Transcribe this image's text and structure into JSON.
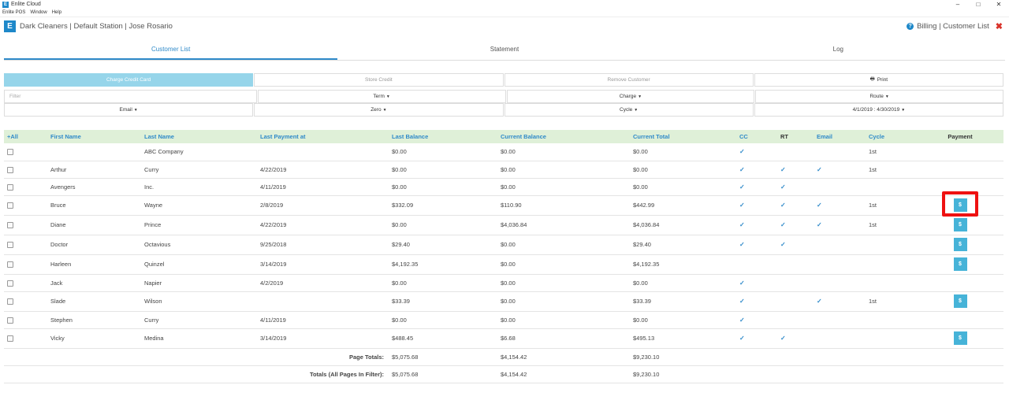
{
  "window": {
    "title": "Enlite Cloud",
    "logo_letter": "E",
    "controls": [
      "–",
      "□",
      "✕"
    ]
  },
  "menu": [
    "Enlite POS",
    "Window",
    "Help"
  ],
  "app": {
    "logo_letter": "E",
    "title": "Dark Cleaners | Default Station | Jose Rosario",
    "right_label": "Billing | Customer List"
  },
  "tabs": [
    "Customer List",
    "Statement",
    "Log"
  ],
  "actions": {
    "charge": "Charge Credit Card",
    "store": "Store Credit",
    "remove": "Remove Customer",
    "print": "Print"
  },
  "filters": {
    "placeholder": "Filter",
    "term": "Term",
    "charge": "Charge",
    "route": "Route",
    "email": "Email",
    "zero": "Zero",
    "cycle": "Cycle",
    "dates": "4/1/2019 : 4/30/2019"
  },
  "table": {
    "headers": {
      "all": "+All",
      "first": "First Name",
      "last": "Last Name",
      "lastpay": "Last Payment at",
      "lastbal": "Last Balance",
      "curbal": "Current Balance",
      "curtot": "Current Total",
      "cc": "CC",
      "rt": "RT",
      "email": "Email",
      "cycle": "Cycle",
      "payment": "Payment"
    },
    "rows": [
      {
        "first": "",
        "last": "ABC Company",
        "lastpay": "",
        "lastbal": "$0.00",
        "curbal": "$0.00",
        "curtot": "$0.00",
        "cc": true,
        "rt": false,
        "email": false,
        "cycle": "1st",
        "pay": false
      },
      {
        "first": "Arthur",
        "last": "Curry",
        "lastpay": "4/22/2019",
        "lastbal": "$0.00",
        "curbal": "$0.00",
        "curtot": "$0.00",
        "cc": true,
        "rt": true,
        "email": true,
        "cycle": "1st",
        "pay": false
      },
      {
        "first": "Avengers",
        "last": "Inc.",
        "lastpay": "4/11/2019",
        "lastbal": "$0.00",
        "curbal": "$0.00",
        "curtot": "$0.00",
        "cc": true,
        "rt": true,
        "email": false,
        "cycle": "",
        "pay": false
      },
      {
        "first": "Bruce",
        "last": "Wayne",
        "lastpay": "2/8/2019",
        "lastbal": "$332.09",
        "curbal": "$110.90",
        "curtot": "$442.99",
        "cc": true,
        "rt": true,
        "email": true,
        "cycle": "1st",
        "pay": true,
        "highlight": true
      },
      {
        "first": "Diane",
        "last": "Prince",
        "lastpay": "4/22/2019",
        "lastbal": "$0.00",
        "curbal": "$4,036.84",
        "curtot": "$4,036.84",
        "cc": true,
        "rt": true,
        "email": true,
        "cycle": "1st",
        "pay": true
      },
      {
        "first": "Doctor",
        "last": "Octavious",
        "lastpay": "9/25/2018",
        "lastbal": "$29.40",
        "curbal": "$0.00",
        "curtot": "$29.40",
        "cc": true,
        "rt": true,
        "email": false,
        "cycle": "",
        "pay": true
      },
      {
        "first": "Harleen",
        "last": "Quinzel",
        "lastpay": "3/14/2019",
        "lastbal": "$4,192.35",
        "curbal": "$0.00",
        "curtot": "$4,192.35",
        "cc": false,
        "rt": false,
        "email": false,
        "cycle": "",
        "pay": true
      },
      {
        "first": "Jack",
        "last": "Napier",
        "lastpay": "4/2/2019",
        "lastbal": "$0.00",
        "curbal": "$0.00",
        "curtot": "$0.00",
        "cc": true,
        "rt": false,
        "email": false,
        "cycle": "",
        "pay": false
      },
      {
        "first": "Slade",
        "last": "Wilson",
        "lastpay": "",
        "lastbal": "$33.39",
        "curbal": "$0.00",
        "curtot": "$33.39",
        "cc": true,
        "rt": false,
        "email": true,
        "cycle": "1st",
        "pay": true
      },
      {
        "first": "Stephen",
        "last": "Curry",
        "lastpay": "4/11/2019",
        "lastbal": "$0.00",
        "curbal": "$0.00",
        "curtot": "$0.00",
        "cc": true,
        "rt": false,
        "email": false,
        "cycle": "",
        "pay": false
      },
      {
        "first": "Vicky",
        "last": "Medina",
        "lastpay": "3/14/2019",
        "lastbal": "$488.45",
        "curbal": "$6.68",
        "curtot": "$495.13",
        "cc": true,
        "rt": true,
        "email": false,
        "cycle": "",
        "pay": true
      }
    ],
    "pay_label": "$",
    "check": "✓",
    "page_totals": {
      "label": "Page Totals:",
      "lastbal": "$5,075.68",
      "curbal": "$4,154.42",
      "curtot": "$9,230.10"
    },
    "all_totals": {
      "label": "Totals (All Pages In Filter):",
      "lastbal": "$5,075.68",
      "curbal": "$4,154.42",
      "curtot": "$9,230.10"
    }
  },
  "colors": {
    "accent": "#2f8ac9",
    "header_bg": "#dff0d8",
    "pay_button": "#46b3d8",
    "highlight": "#e11111",
    "close": "#d9332b"
  }
}
